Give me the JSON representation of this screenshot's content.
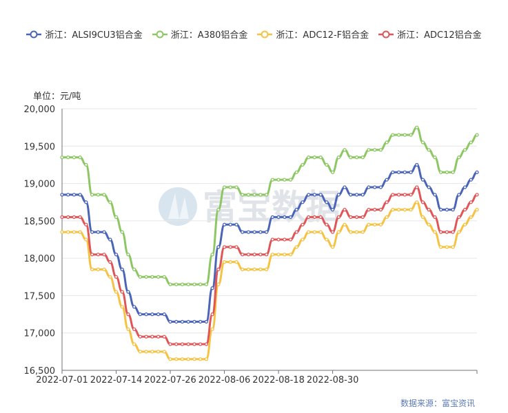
{
  "legend": [
    {
      "name": "浙江：ALSI9CU3铝合金",
      "color": "#4a64b8"
    },
    {
      "name": "浙江：A380铝合金",
      "color": "#8cc763"
    },
    {
      "name": "浙江：ADC12-F铝合金",
      "color": "#f5c242"
    },
    {
      "name": "浙江：ADC12铝合金",
      "color": "#e05658"
    }
  ],
  "unit_label": "单位：元/吨",
  "source_label": "数据来源：富宝资讯",
  "watermark": "富宝数据",
  "chart_data": {
    "type": "line",
    "ylim": [
      16500,
      20000
    ],
    "yticks": [
      "16,500",
      "17,000",
      "17,500",
      "18,000",
      "18,500",
      "19,000",
      "19,500",
      "20,000"
    ],
    "xtick_labels": [
      "2022-07-01",
      "2022-07-14",
      "2022-07-26",
      "2022-08-06",
      "2022-08-18",
      "2022-08-30"
    ],
    "xtick_index": [
      0,
      9,
      18,
      27,
      36,
      45
    ],
    "grid": true,
    "legend_position": "top",
    "series": [
      {
        "name": "浙江：ALSI9CU3铝合金",
        "color": "#4a64b8",
        "values": [
          18850,
          18850,
          18850,
          18850,
          18750,
          18350,
          18350,
          18350,
          18250,
          18050,
          17850,
          17550,
          17350,
          17250,
          17250,
          17250,
          17250,
          17250,
          17150,
          17150,
          17150,
          17150,
          17150,
          17150,
          17150,
          17600,
          18150,
          18450,
          18450,
          18450,
          18350,
          18350,
          18350,
          18350,
          18350,
          18550,
          18550,
          18550,
          18550,
          18650,
          18750,
          18850,
          18850,
          18850,
          18750,
          18650,
          18850,
          18950,
          18850,
          18850,
          18850,
          18950,
          18950,
          18950,
          19050,
          19150,
          19150,
          19150,
          19150,
          19250,
          19050,
          18950,
          18850,
          18650,
          18650,
          18650,
          18850,
          18950,
          19050,
          19150
        ]
      },
      {
        "name": "浙江：A380铝合金",
        "color": "#8cc763",
        "values": [
          19350,
          19350,
          19350,
          19350,
          19250,
          18850,
          18850,
          18850,
          18750,
          18550,
          18350,
          18050,
          17850,
          17750,
          17750,
          17750,
          17750,
          17750,
          17650,
          17650,
          17650,
          17650,
          17650,
          17650,
          17650,
          18050,
          18650,
          18950,
          18950,
          18950,
          18850,
          18850,
          18850,
          18850,
          18850,
          19050,
          19050,
          19050,
          19050,
          19150,
          19250,
          19350,
          19350,
          19350,
          19250,
          19150,
          19350,
          19450,
          19350,
          19350,
          19350,
          19450,
          19450,
          19450,
          19550,
          19650,
          19650,
          19650,
          19650,
          19750,
          19550,
          19450,
          19350,
          19150,
          19150,
          19150,
          19350,
          19450,
          19550,
          19650
        ]
      },
      {
        "name": "浙江：ADC12-F铝合金",
        "color": "#f5c242",
        "values": [
          18350,
          18350,
          18350,
          18350,
          18250,
          17850,
          17850,
          17850,
          17750,
          17550,
          17350,
          17050,
          16850,
          16750,
          16750,
          16750,
          16750,
          16750,
          16650,
          16650,
          16650,
          16650,
          16650,
          16650,
          16650,
          17050,
          17650,
          17950,
          17950,
          17950,
          17850,
          17850,
          17850,
          17850,
          17850,
          18050,
          18050,
          18050,
          18050,
          18150,
          18250,
          18350,
          18350,
          18350,
          18250,
          18150,
          18350,
          18450,
          18350,
          18350,
          18350,
          18450,
          18450,
          18450,
          18550,
          18650,
          18650,
          18650,
          18650,
          18750,
          18550,
          18450,
          18350,
          18150,
          18150,
          18150,
          18350,
          18450,
          18550,
          18650
        ]
      },
      {
        "name": "浙江：ADC12铝合金",
        "color": "#e05658",
        "values": [
          18550,
          18550,
          18550,
          18550,
          18450,
          18050,
          18050,
          18050,
          17950,
          17750,
          17550,
          17250,
          17050,
          16950,
          16950,
          16950,
          16950,
          16950,
          16850,
          16850,
          16850,
          16850,
          16850,
          16850,
          16850,
          17250,
          17850,
          18150,
          18150,
          18150,
          18050,
          18050,
          18050,
          18050,
          18050,
          18250,
          18250,
          18250,
          18250,
          18350,
          18450,
          18550,
          18550,
          18550,
          18450,
          18350,
          18550,
          18650,
          18550,
          18550,
          18550,
          18650,
          18650,
          18650,
          18750,
          18850,
          18850,
          18850,
          18850,
          18950,
          18750,
          18650,
          18550,
          18350,
          18350,
          18350,
          18550,
          18650,
          18750,
          18850
        ]
      }
    ]
  }
}
